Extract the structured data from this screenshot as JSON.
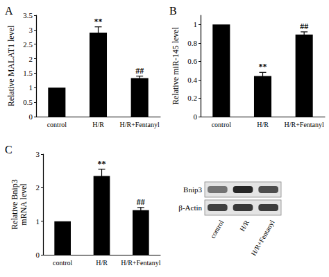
{
  "chart_data": [
    {
      "type": "bar",
      "title": "A",
      "categories": [
        "control",
        "H/R",
        "H/R+Fentanyl"
      ],
      "values": [
        1,
        2.9,
        1.33
      ],
      "errors": [
        0,
        0.2,
        0.07
      ],
      "annotations": [
        null,
        "**",
        "##"
      ],
      "y_label": "Relative MALAT1 level",
      "color": "#000000",
      "ylim": [
        0,
        3.5
      ],
      "yticks": [
        0,
        0.5,
        1,
        1.5,
        2,
        2.5,
        3,
        3.5
      ],
      "grid": false
    },
    {
      "type": "bar",
      "title": "B",
      "categories": [
        "control",
        "H/R",
        "H/R+Fentanyl"
      ],
      "values": [
        1,
        0.44,
        0.89
      ],
      "errors": [
        0,
        0.04,
        0.03
      ],
      "annotations": [
        null,
        "**",
        "##"
      ],
      "y_label": "Relative miR-145 level",
      "color": "#000000",
      "ylim": [
        0,
        1.1
      ],
      "yticks": [
        0,
        0.2,
        0.4,
        0.6,
        0.8,
        1
      ],
      "grid": false
    },
    {
      "type": "bar",
      "title": "C",
      "categories": [
        "control",
        "H/R",
        "H/R+Fentanyl"
      ],
      "values": [
        1,
        2.35,
        1.33
      ],
      "errors": [
        0,
        0.2,
        0.08
      ],
      "annotations": [
        null,
        "**",
        "##"
      ],
      "y_label": "Relative Bnip3\nmRNA level",
      "color": "#000000",
      "ylim": [
        0,
        3
      ],
      "yticks": [
        0,
        1,
        2,
        3
      ],
      "grid": false
    }
  ],
  "blot": {
    "rows": [
      "Bnip3",
      "β-Actin"
    ],
    "lanes": [
      "control",
      "H/R",
      "H/R+Fentanyl"
    ]
  }
}
